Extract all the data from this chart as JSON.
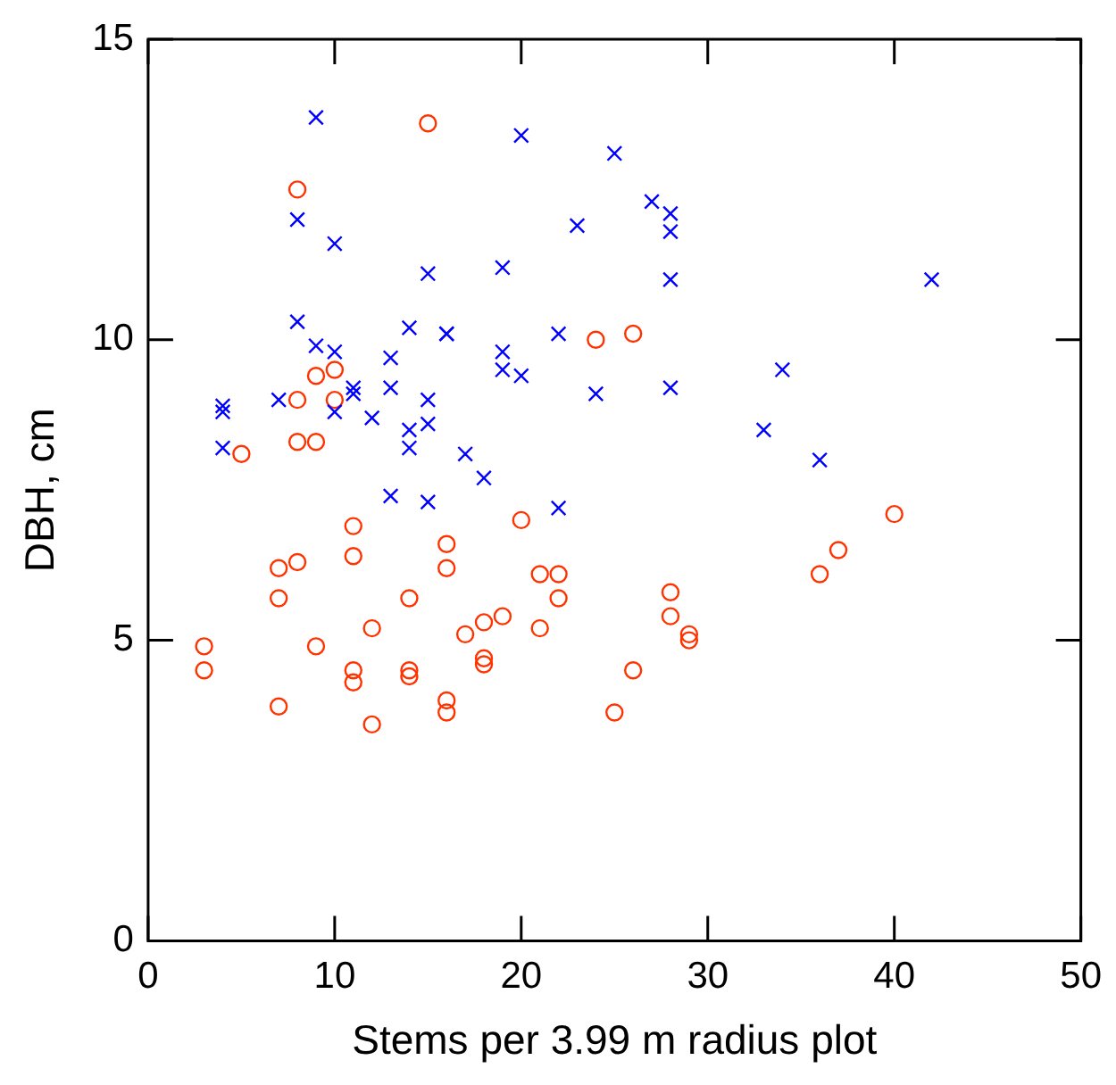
{
  "chart_data": {
    "type": "scatter",
    "xlabel": "Stems per 3.99 m radius plot",
    "ylabel": "DBH, cm",
    "xlim": [
      0,
      50
    ],
    "ylim": [
      0,
      15
    ],
    "xticks": [
      0,
      10,
      20,
      30,
      40,
      50
    ],
    "yticks": [
      0,
      5,
      10,
      15
    ],
    "grid": false,
    "legend": false,
    "series": [
      {
        "color": "#0000ff",
        "marker": "cross",
        "x": [
          9,
          25,
          20,
          27,
          28,
          28,
          23,
          8,
          10,
          15,
          19,
          28,
          42,
          8,
          14,
          16,
          16,
          22,
          9,
          10,
          19,
          19,
          20,
          34,
          7,
          4,
          4,
          10,
          11,
          11,
          13,
          13,
          15,
          12,
          14,
          14,
          15,
          24,
          28,
          4,
          33,
          36,
          17,
          18,
          15,
          13,
          22
        ],
        "values": [
          13.7,
          13.1,
          13.4,
          12.3,
          12.1,
          11.8,
          11.9,
          12.0,
          11.6,
          11.1,
          11.2,
          11.0,
          11.0,
          10.3,
          10.2,
          10.1,
          10.1,
          10.1,
          9.9,
          9.8,
          9.8,
          9.5,
          9.4,
          9.5,
          9.0,
          8.9,
          8.8,
          8.8,
          9.2,
          9.1,
          9.2,
          9.7,
          9.0,
          8.7,
          8.5,
          8.2,
          8.6,
          9.1,
          9.2,
          8.2,
          8.5,
          8.0,
          8.1,
          7.7,
          7.3,
          7.4,
          7.2
        ]
      },
      {
        "color": "#ff3300",
        "marker": "circle",
        "x": [
          15,
          8,
          24,
          26,
          8,
          9,
          10,
          10,
          8,
          9,
          5,
          40,
          37,
          36,
          20,
          11,
          7,
          8,
          11,
          16,
          16,
          21,
          22,
          7,
          14,
          12,
          21,
          22,
          28,
          28,
          29,
          29,
          19,
          18,
          17,
          3,
          3,
          9,
          11,
          11,
          14,
          14,
          18,
          18,
          26,
          7,
          12,
          16,
          16,
          25
        ],
        "values": [
          13.6,
          12.5,
          10.0,
          10.1,
          9.0,
          9.4,
          9.5,
          9.0,
          8.3,
          8.3,
          8.1,
          7.1,
          6.5,
          6.1,
          7.0,
          6.9,
          6.2,
          6.3,
          6.4,
          6.6,
          6.2,
          6.1,
          6.1,
          5.7,
          5.7,
          5.2,
          5.2,
          5.7,
          5.8,
          5.4,
          5.1,
          5.0,
          5.4,
          5.3,
          5.1,
          4.9,
          4.5,
          4.9,
          4.5,
          4.3,
          4.5,
          4.4,
          4.7,
          4.6,
          4.5,
          3.9,
          3.6,
          4.0,
          3.8,
          3.8
        ]
      }
    ]
  }
}
